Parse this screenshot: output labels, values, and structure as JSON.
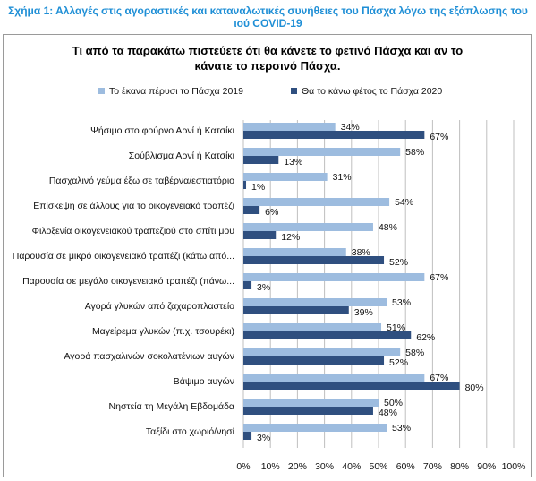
{
  "figure_caption_line1": "Σχήμα 1: Αλλαγές στις αγοραστικές και καταναλωτικές συνήθειες του Πάσχα λόγω της εξάπλωσης του",
  "figure_caption_line2": "ιού COVID-19",
  "colors": {
    "series_2019": "#9dbcdf",
    "series_2020": "#2f4f7f",
    "caption": "#1f8fd6"
  },
  "chart_data": {
    "type": "bar",
    "orientation": "horizontal",
    "title_lines": [
      "Τι από τα παρακάτω πιστεύετε ότι θα κάνετε το φετινό Πάσχα και αν το",
      "κάνατε το περσινό Πάσχα."
    ],
    "categories": [
      "Ψήσιμο στο φούρνο Αρνί ή Κατσίκι",
      "Σούβλισμα Αρνί ή Κατσίκι",
      "Πασχαλινό γεύμα έξω σε ταβέρνα/εστιατόριο",
      "Επίσκεψη σε άλλους για το οικογενειακό τραπέζι",
      "Φιλοξενία οικογενειακού τραπεζιού στο σπίτι μου",
      "Παρουσία σε μικρό οικογενειακό τραπέζι (κάτω από...",
      "Παρουσία σε μεγάλο οικογενειακό τραπέζι (πάνω...",
      "Αγορά γλυκών από ζαχαροπλαστείο",
      "Μαγείρεμα γλυκών (π.χ. τσουρέκι)",
      "Αγορά πασχαλινών σοκολατένιων αυγών",
      "Βάψιμο αυγών",
      "Νηστεία τη Μεγάλη Εβδομάδα",
      "Ταξίδι στο χωριό/νησί"
    ],
    "series": [
      {
        "name": "Το έκανα πέρυσι το Πάσχα 2019",
        "values": [
          34,
          58,
          31,
          54,
          48,
          38,
          67,
          53,
          51,
          58,
          67,
          50,
          53
        ],
        "labels": [
          "34%",
          "58%",
          "31%",
          "54%",
          "48%",
          "38%",
          "67%",
          "53%",
          "51%",
          "58%",
          "67%",
          "50%",
          "53%"
        ]
      },
      {
        "name": "Θα το κάνω φέτος το Πάσχα 2020",
        "values": [
          67,
          13,
          1,
          6,
          12,
          52,
          3,
          39,
          62,
          52,
          80,
          48,
          3
        ],
        "labels": [
          "67%",
          "13%",
          "1%",
          "6%",
          "12%",
          "52%",
          "3%",
          "39%",
          "62%",
          "52%",
          "80%",
          "48%",
          "3%"
        ]
      }
    ],
    "xlim": [
      0,
      100
    ],
    "xticks": [
      "0%",
      "10%",
      "20%",
      "30%",
      "40%",
      "50%",
      "60%",
      "70%",
      "80%",
      "90%",
      "100%"
    ],
    "grid": true,
    "legend_position": "top"
  }
}
